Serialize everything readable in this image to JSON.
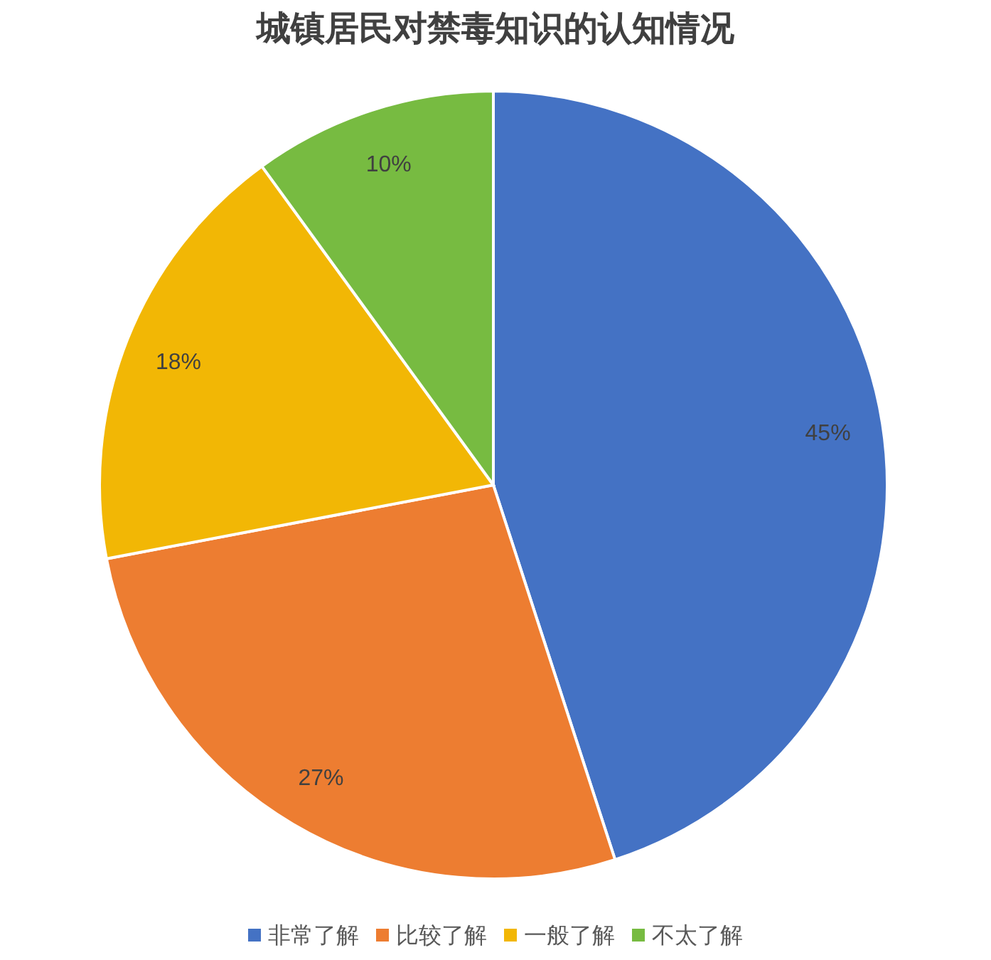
{
  "chart_data": {
    "type": "pie",
    "title": "城镇居民对禁毒知识的认知情况",
    "categories": [
      "非常了解",
      "比较了解",
      "一般了解",
      "不太了解"
    ],
    "values": [
      45,
      27,
      18,
      10
    ],
    "colors": [
      "#4472c4",
      "#ed7d31",
      "#f2b705",
      "#77bb41"
    ],
    "value_labels": [
      "45%",
      "27%",
      "18%",
      "10%"
    ],
    "legend": "bottom"
  }
}
